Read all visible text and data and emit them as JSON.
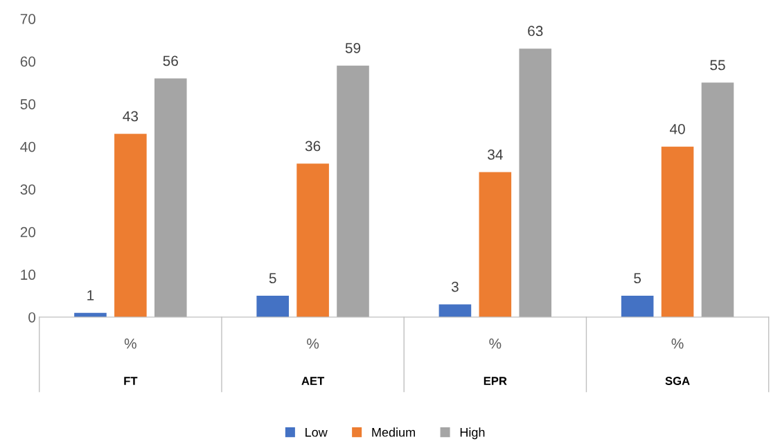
{
  "chart_data": {
    "type": "bar",
    "categories": [
      "FT",
      "AET",
      "EPR",
      "SGA"
    ],
    "annotations": [
      "%",
      "%",
      "%",
      "%"
    ],
    "series": [
      {
        "name": "Low",
        "color": "#4472c4",
        "values": [
          1,
          5,
          3,
          5
        ]
      },
      {
        "name": "Medium",
        "color": "#ed7d31",
        "values": [
          43,
          36,
          34,
          40
        ]
      },
      {
        "name": "High",
        "color": "#a5a5a5",
        "values": [
          56,
          59,
          63,
          55
        ]
      }
    ],
    "ylim": [
      0,
      70
    ],
    "yticks": [
      0,
      10,
      20,
      30,
      40,
      50,
      60,
      70
    ],
    "data_labels": true,
    "grid": false,
    "legend": "bottom"
  }
}
